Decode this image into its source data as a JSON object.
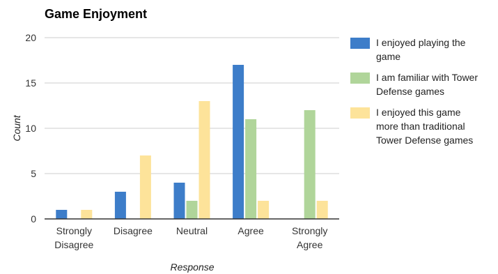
{
  "chart_data": {
    "type": "bar",
    "title": "Game Enjoyment",
    "xlabel": "Response",
    "ylabel": "Count",
    "ylim": [
      0,
      20
    ],
    "yticks": [
      0,
      5,
      10,
      15,
      20
    ],
    "grid": true,
    "legend_position": "right",
    "categories": [
      [
        "Strongly",
        "Disagree"
      ],
      [
        "Disagree"
      ],
      [
        "Neutral"
      ],
      [
        "Agree"
      ],
      [
        "Strongly",
        "Agree"
      ]
    ],
    "series": [
      {
        "name": [
          "I enjoyed playing the",
          "game"
        ],
        "color": "#3d7dc9",
        "values": [
          1,
          3,
          4,
          17,
          0
        ]
      },
      {
        "name": [
          "I am familiar with Tower",
          "Defense games"
        ],
        "color": "#b0d59a",
        "values": [
          0,
          0,
          2,
          11,
          12
        ]
      },
      {
        "name": [
          "I enjoyed this game",
          "more than traditional",
          "Tower Defense games"
        ],
        "color": "#fde39a",
        "values": [
          1,
          7,
          13,
          2,
          2
        ]
      }
    ]
  }
}
